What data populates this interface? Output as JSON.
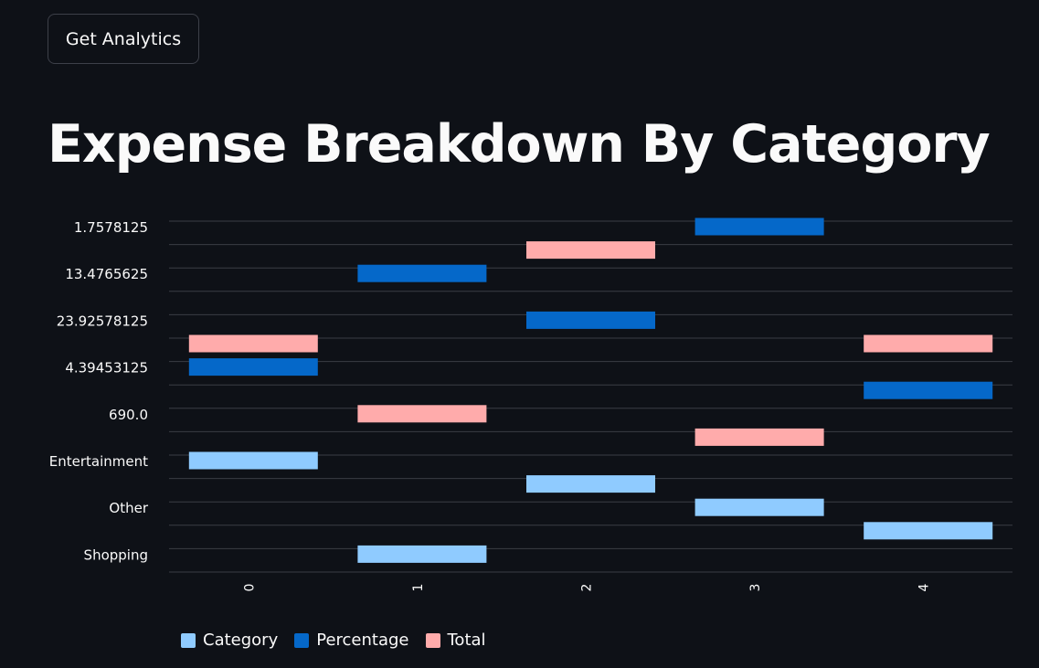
{
  "toolbar": {
    "analytics_button_label": "Get Analytics"
  },
  "page": {
    "title": "Expense Breakdown By Category"
  },
  "colors": {
    "background": "#0e1117",
    "Category": "#8fcbff",
    "Percentage": "#0568c9",
    "Total": "#ffabab",
    "gridline": "#3a3d45"
  },
  "chart_data": {
    "type": "bar",
    "orientation": "floating-horizontal-bars",
    "x_categories": [
      "0",
      "1",
      "2",
      "3",
      "4"
    ],
    "y_categories": [
      "1.7578125",
      "13.4765625",
      "23.92578125",
      "4.39453125",
      "690.0",
      "Entertainment",
      "Other",
      "Shopping"
    ],
    "series": [
      {
        "name": "Category",
        "values": [
          "Entertainment",
          "Shopping",
          "",
          "Other",
          ""
        ]
      },
      {
        "name": "Percentage",
        "values": [
          "4.39453125",
          "13.4765625",
          "23.92578125",
          "1.7578125",
          ""
        ]
      },
      {
        "name": "Total",
        "values": [
          "",
          "690.0",
          "",
          "",
          ""
        ]
      }
    ],
    "legend_position": "bottom-left",
    "grid": true,
    "xlabel": "",
    "ylabel": ""
  }
}
